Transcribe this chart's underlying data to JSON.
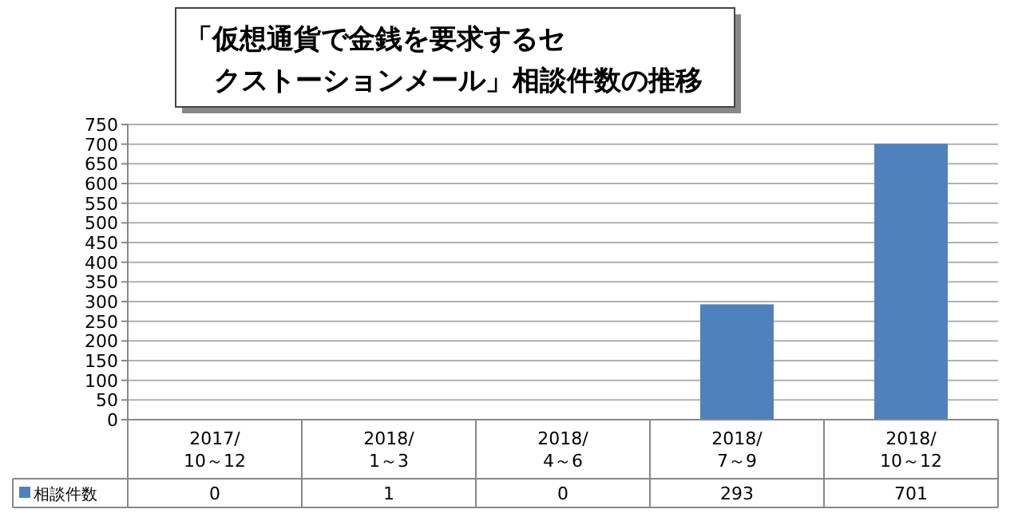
{
  "chart_data": {
    "type": "bar",
    "title": "「仮想通貨で金銭を要求するセクストーションメール」相談件数の推移",
    "categories": [
      "2017/\n10～12",
      "2018/\n1～3",
      "2018/\n4～6",
      "2018/\n7～9",
      "2018/\n10～12"
    ],
    "series": [
      {
        "name": "相談件数",
        "color": "#4f81bd",
        "values": [
          0,
          1,
          0,
          293,
          701
        ]
      }
    ],
    "ylim": [
      0,
      750
    ],
    "yticks": [
      0,
      50,
      100,
      150,
      200,
      250,
      300,
      350,
      400,
      450,
      500,
      550,
      600,
      650,
      700,
      750
    ],
    "grid": "y",
    "data_labels": true,
    "legend": "bottom"
  }
}
